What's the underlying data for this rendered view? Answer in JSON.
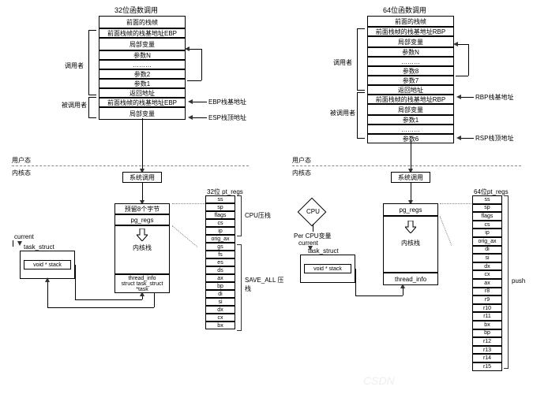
{
  "left": {
    "title": "32位函数调用",
    "stack_top": "前面的栈帧",
    "rows": [
      "前面栈帧的栈基地址EBP",
      "局部变量",
      "参数N",
      "………",
      "参数2",
      "参数1",
      "返回地址",
      "前面栈帧的栈基地址EBP",
      "局部变量"
    ],
    "caller": "调用者",
    "callee": "被调用者",
    "ebp_note": "EBP栈基地址",
    "esp_note": "ESP栈顶地址",
    "user": "用户态",
    "kernel": "内核态",
    "syscall": "系统调用",
    "reserve": "预留8个字节",
    "pgregs": "pg_regs",
    "kstack": "内核栈",
    "thread": "thread_info\nstruct task_struct *task",
    "task_struct": "task_struct",
    "voidstack": "void * stack",
    "current": "current",
    "ptregs_title": "32位 pt_regs",
    "ptregs": [
      "ss",
      "sp",
      "flags",
      "cs",
      "ip",
      "orig_ax",
      "gs",
      "fs",
      "es",
      "ds",
      "ax",
      "bp",
      "di",
      "si",
      "dx",
      "cx",
      "bx"
    ],
    "cpu_push": "CPU压栈",
    "saveall": "SAVE_ALL 压栈"
  },
  "right": {
    "title": "64位函数调用",
    "stack_top": "前面的栈帧",
    "rows": [
      "前面栈帧的栈基地址RBP",
      "局部变量",
      "参数N",
      "………",
      "参数8",
      "参数7",
      "返回地址",
      "前面栈帧的栈基地址RBP",
      "局部变量",
      "参数1",
      "………",
      "参数6"
    ],
    "caller": "调用者",
    "callee": "被调用者",
    "rbp_note": "RBP栈基地址",
    "rsp_note": "RSP栈顶地址",
    "user": "用户态",
    "kernel": "内核态",
    "syscall": "系统调用",
    "pgregs": "pg_regs",
    "kstack": "内核栈",
    "thread": "thread_info",
    "task_struct": "task_struct",
    "voidstack": "void * stack",
    "current": "current",
    "percpu": "Per CPU变量",
    "cpu": "CPU",
    "ptregs_title": "64位pt_regs",
    "ptregs": [
      "ss",
      "sp",
      "flags",
      "cs",
      "ip",
      "orig_ax",
      "di",
      "si",
      "dx",
      "cx",
      "ax",
      "r8",
      "r9",
      "r10",
      "r11",
      "bx",
      "bp",
      "r12",
      "r13",
      "r14",
      "r15"
    ],
    "push": "push"
  }
}
